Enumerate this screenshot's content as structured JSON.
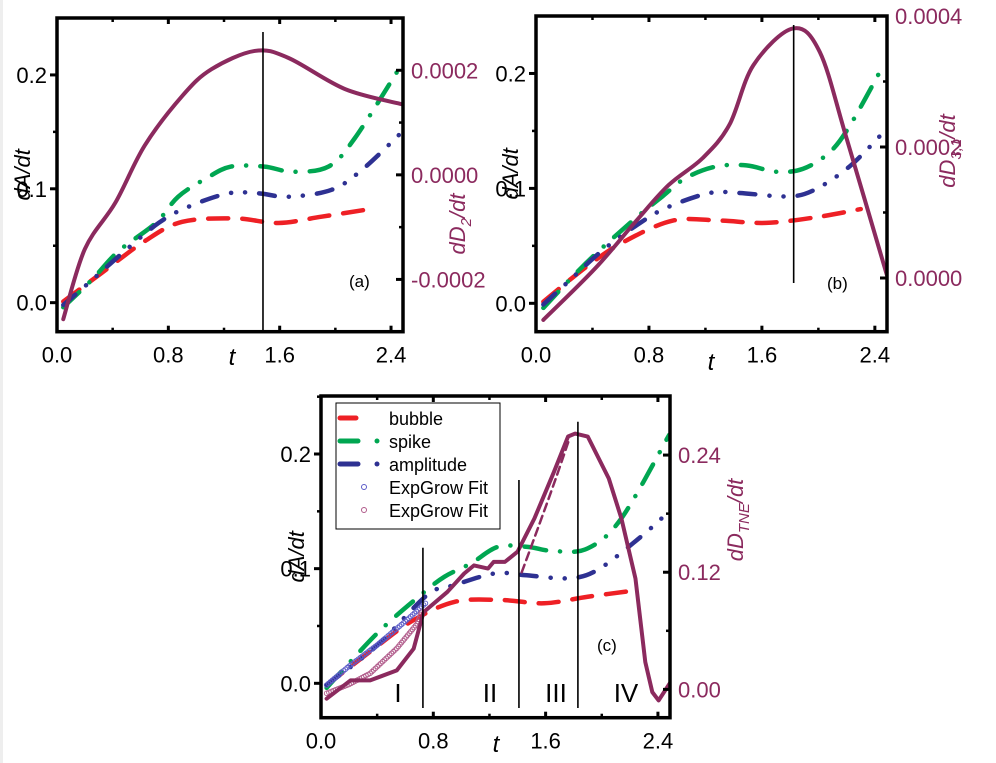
{
  "colors": {
    "bubble": "#ee2025",
    "spike": "#00a651",
    "amplitude": "#2e3192",
    "tne": "#8b2a5e",
    "fit_blue": "#5b5bc8",
    "fit_pink": "#b05a8a",
    "axis": "#000000",
    "right_axis_text": "#8b2a5e"
  },
  "chart_data": [
    {
      "type": "line",
      "panel_label": "(a)",
      "xlabel": "t",
      "ylabel": "dA/dt",
      "ylabel2": "dD2/dt",
      "ylabel2_sub": "2",
      "xlim": [
        0,
        2.486
      ],
      "ylim": [
        -0.0255,
        0.25
      ],
      "y2lim": [
        -0.0003,
        0.0003
      ],
      "xticks": [
        0.0,
        0.8,
        1.6,
        2.4
      ],
      "xtick_labels": [
        "0.0",
        "0.8",
        "1.6",
        "2.4"
      ],
      "yticks": [
        0.0,
        0.1,
        0.2
      ],
      "ytick_labels": [
        "0.0",
        "0.1",
        "0.2"
      ],
      "y2ticks": [
        -0.0002,
        0.0,
        0.0002
      ],
      "y2tick_labels": [
        "-0.0002",
        "0.0000",
        "0.0002"
      ],
      "vlines": [
        1.48
      ],
      "series": [
        {
          "name": "bubble",
          "axis": "left",
          "style": "dash",
          "x": [
            0.045,
            0.32,
            0.63,
            0.9,
            1.28,
            1.59,
            1.9,
            2.29
          ],
          "y": [
            0.001,
            0.026,
            0.054,
            0.071,
            0.074,
            0.07,
            0.0755,
            0.083
          ]
        },
        {
          "name": "spike",
          "axis": "left",
          "style": "dashdot",
          "x": [
            0.045,
            0.25,
            0.44,
            0.71,
            0.87,
            1.07,
            1.25,
            1.49,
            1.69,
            1.95,
            2.14,
            2.45
          ],
          "y": [
            -0.004,
            0.02,
            0.045,
            0.07,
            0.093,
            0.109,
            0.1195,
            0.1195,
            0.115,
            0.1195,
            0.1445,
            0.204
          ]
        },
        {
          "name": "amplitude",
          "axis": "left",
          "style": "dashdotdot",
          "x": [
            0.045,
            0.225,
            0.465,
            0.73,
            0.94,
            1.23,
            1.45,
            1.66,
            1.97,
            2.19,
            2.48
          ],
          "y": [
            -0.002,
            0.017,
            0.043,
            0.07,
            0.084,
            0.096,
            0.096,
            0.093,
            0.099,
            0.1165,
            0.15
          ]
        },
        {
          "name": "dD2/dt",
          "axis": "right",
          "style": "solid",
          "x": [
            0.045,
            0.2,
            0.42,
            0.63,
            0.9,
            1.11,
            1.42,
            1.66,
            2.07,
            2.48
          ],
          "y": [
            -0.000276,
            -0.000142,
            -5.3e-05,
            5.6e-05,
            0.000151,
            0.000202,
            0.000237,
            0.000224,
            0.000164,
            0.000135
          ]
        }
      ]
    },
    {
      "type": "line",
      "panel_label": "(b)",
      "xlabel": "t",
      "ylabel": "dA/dt",
      "ylabel2": "dD3,1/dt",
      "ylabel2_sub": "3,1",
      "xlim": [
        0,
        2.486
      ],
      "ylim": [
        -0.0247,
        0.25
      ],
      "y2lim": [
        -8.2e-05,
        0.0004
      ],
      "xticks": [
        0.0,
        0.8,
        1.6,
        2.4
      ],
      "xtick_labels": [
        "0.0",
        "0.8",
        "1.6",
        "2.4"
      ],
      "yticks": [
        0.0,
        0.1,
        0.2
      ],
      "ytick_labels": [
        "0.0",
        "0.1",
        "0.2"
      ],
      "y2ticks": [
        0.0,
        0.0002,
        0.0004
      ],
      "y2tick_labels": [
        "0.0000",
        "0.0002",
        "0.0004"
      ],
      "vlines": [
        1.825
      ],
      "series": [
        {
          "name": "bubble",
          "axis": "left",
          "style": "dash",
          "x": [
            0.052,
            0.37,
            0.63,
            0.97,
            1.3,
            1.63,
            1.99,
            2.3
          ],
          "y": [
            0.0014,
            0.033,
            0.054,
            0.072,
            0.072,
            0.07,
            0.075,
            0.082
          ]
        },
        {
          "name": "spike",
          "axis": "left",
          "style": "dashdot",
          "x": [
            0.052,
            0.25,
            0.44,
            0.705,
            0.895,
            1.06,
            1.275,
            1.49,
            1.7,
            1.89,
            2.08,
            2.225,
            2.46
          ],
          "y": [
            -0.004,
            0.022,
            0.045,
            0.074,
            0.093,
            0.109,
            0.119,
            0.12,
            0.1145,
            0.117,
            0.1315,
            0.155,
            0.207
          ]
        },
        {
          "name": "amplitude",
          "axis": "left",
          "style": "dashdotdot",
          "x": [
            0.052,
            0.23,
            0.47,
            0.75,
            0.94,
            1.23,
            1.44,
            1.77,
            1.96,
            2.22,
            2.485
          ],
          "y": [
            -0.001,
            0.019,
            0.046,
            0.071,
            0.084,
            0.096,
            0.096,
            0.093,
            0.098,
            0.119,
            0.152
          ]
        },
        {
          "name": "dD3,1/dt",
          "axis": "right",
          "style": "solid",
          "x": [
            0.052,
            0.42,
            0.705,
            0.94,
            1.18,
            1.37,
            1.54,
            1.82,
            2.01,
            2.2,
            2.485
          ],
          "y": [
            -6.4e-05,
            1.48e-05,
            8.6e-05,
            0.000142,
            0.000183,
            0.000234,
            0.000325,
            0.000381,
            0.000345,
            0.000213,
            4.6e-06
          ]
        }
      ]
    },
    {
      "type": "line",
      "panel_label": "(c)",
      "xlabel": "t",
      "ylabel": "dA/dt",
      "ylabel2": "dDTNE/dt",
      "ylabel2_sub": "TNE",
      "xlim": [
        0,
        2.486
      ],
      "ylim": [
        -0.03,
        0.2506
      ],
      "y2lim": [
        -0.029,
        0.3005
      ],
      "xticks": [
        0.0,
        0.8,
        1.6,
        2.4
      ],
      "xtick_labels": [
        "0.0",
        "0.8",
        "1.6",
        "2.4"
      ],
      "yticks": [
        0.0,
        0.1,
        0.2
      ],
      "ytick_labels": [
        "0.0",
        "0.1",
        "0.2"
      ],
      "y2ticks": [
        0.0,
        0.12,
        0.24
      ],
      "y2tick_labels": [
        "0.00",
        "0.12",
        "0.24"
      ],
      "vlines": [
        0.726,
        1.41,
        1.83
      ],
      "regions": [
        "I",
        "II",
        "III",
        "IV"
      ],
      "legend": {
        "placement": "top-left",
        "entries": [
          {
            "label": "bubble",
            "style": "dash",
            "color_key": "bubble"
          },
          {
            "label": "spike",
            "style": "dashdot",
            "color_key": "spike"
          },
          {
            "label": "amplitude",
            "style": "dashdotdot",
            "color_key": "amplitude"
          },
          {
            "label": "ExpGrow Fit",
            "style": "circle",
            "color_key": "fit_blue"
          },
          {
            "label": "ExpGrow Fit",
            "style": "circle",
            "color_key": "fit_pink"
          }
        ]
      },
      "series": [
        {
          "name": "bubble",
          "axis": "left",
          "style": "dash",
          "x": [
            0.04,
            0.35,
            0.64,
            0.95,
            1.28,
            1.59,
            1.9,
            2.26
          ],
          "y": [
            -0.0015,
            0.0276,
            0.0537,
            0.071,
            0.0727,
            0.0698,
            0.0755,
            0.0814
          ]
        },
        {
          "name": "spike",
          "axis": "left",
          "style": "dashdot",
          "x": [
            0.04,
            0.4,
            0.71,
            0.88,
            1.07,
            1.26,
            1.47,
            1.66,
            1.9,
            2.14,
            2.48
          ],
          "y": [
            -0.004,
            0.0436,
            0.077,
            0.093,
            0.1047,
            0.119,
            0.119,
            0.1153,
            0.1177,
            0.1439,
            0.2166
          ]
        },
        {
          "name": "amplitude",
          "axis": "left",
          "style": "dashdotdot",
          "x": [
            0.04,
            0.4,
            0.757,
            0.95,
            1.24,
            1.45,
            1.76,
            1.97,
            2.28,
            2.48
          ],
          "y": [
            -0.0015,
            0.033,
            0.077,
            0.0857,
            0.0959,
            0.0944,
            0.0916,
            0.0989,
            0.128,
            0.15
          ]
        },
        {
          "name": "ExpGrow Fit (blue)",
          "axis": "left",
          "style": "circles",
          "color_key": "fit_blue",
          "x": [
            0.04,
            0.2,
            0.4,
            0.6,
            0.757
          ],
          "y": [
            -0.0015,
            0.015,
            0.0334,
            0.054,
            0.0712
          ]
        },
        {
          "name": "ExpGrow Fit (pink)",
          "axis": "left",
          "style": "circles",
          "color_key": "fit_pink",
          "x": [
            0.04,
            0.2,
            0.35,
            0.54,
            0.685,
            0.72
          ],
          "y": [
            -0.0087,
            -0.001,
            0.0087,
            0.0305,
            0.052,
            0.064
          ]
        },
        {
          "name": "dDTNE/dt",
          "axis": "right",
          "style": "solid",
          "x": [
            0.04,
            0.21,
            0.35,
            0.54,
            0.66,
            0.73,
            0.9,
            1.02,
            1.09,
            1.19,
            1.23,
            1.31,
            1.4,
            1.52,
            1.66,
            1.76,
            1.81,
            1.9,
            2.05,
            2.14,
            2.24,
            2.31,
            2.36,
            2.405,
            2.49
          ],
          "y": [
            -0.0095,
            0.0092,
            0.0092,
            0.0195,
            0.0417,
            0.079,
            0.0998,
            0.1187,
            0.127,
            0.1238,
            0.1306,
            0.1306,
            0.141,
            0.175,
            0.223,
            0.259,
            0.262,
            0.259,
            0.216,
            0.175,
            0.1135,
            0.028,
            -0.0028,
            -0.0113,
            0.0075
          ]
        },
        {
          "name": "dDTNE/dt fit",
          "axis": "right",
          "style": "shortdash",
          "x": [
            1.43,
            1.55,
            1.67,
            1.77
          ],
          "y": [
            0.12,
            0.167,
            0.215,
            0.257
          ]
        }
      ]
    }
  ]
}
